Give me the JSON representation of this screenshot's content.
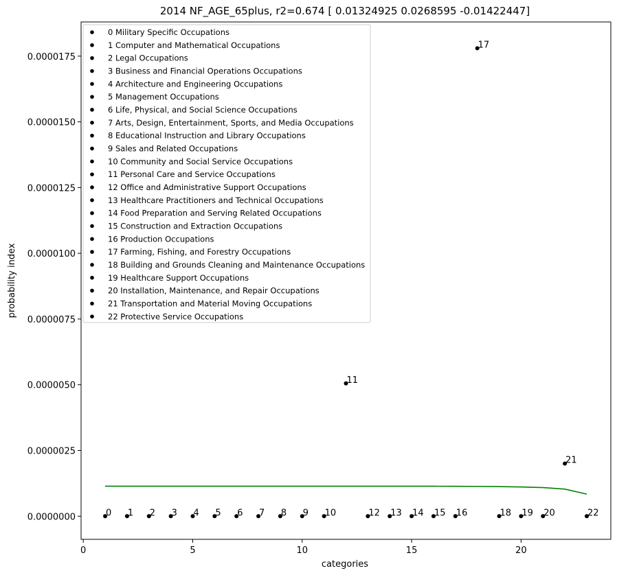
{
  "chart_data": {
    "type": "scatter",
    "title": "2014 NF_AGE_65plus, r2=0.674  [ 0.01324925  0.0268595  -0.01422447]",
    "xlabel": "categories",
    "ylabel": "probability index",
    "xlim": [
      -0.1,
      24.1
    ],
    "ylim": [
      -8.8e-07,
      1.88e-05
    ],
    "x_ticks": [
      0,
      5,
      10,
      15,
      20
    ],
    "x_tick_labels": [
      "0",
      "5",
      "10",
      "15",
      "20"
    ],
    "y_ticks": [
      0,
      2.5e-06,
      5e-06,
      7.5e-06,
      1e-05,
      1.25e-05,
      1.5e-05,
      1.75e-05
    ],
    "y_tick_labels": [
      "0.0000000",
      "0.0000025",
      "0.0000050",
      "0.0000075",
      "0.0000100",
      "0.0000125",
      "0.0000150",
      "0.0000175"
    ],
    "legend_position": "top-left",
    "point_color": "#000000",
    "fit_color": "#008000",
    "points": [
      {
        "label": "0",
        "x": 1,
        "y": 0
      },
      {
        "label": "1",
        "x": 2,
        "y": 0
      },
      {
        "label": "2",
        "x": 3,
        "y": 0
      },
      {
        "label": "3",
        "x": 4,
        "y": 0
      },
      {
        "label": "4",
        "x": 5,
        "y": 0
      },
      {
        "label": "5",
        "x": 6,
        "y": 0
      },
      {
        "label": "6",
        "x": 7,
        "y": 0
      },
      {
        "label": "7",
        "x": 8,
        "y": 0
      },
      {
        "label": "8",
        "x": 9,
        "y": 0
      },
      {
        "label": "9",
        "x": 10,
        "y": 0
      },
      {
        "label": "10",
        "x": 11,
        "y": 0
      },
      {
        "label": "11",
        "x": 12,
        "y": 5.05e-06
      },
      {
        "label": "12",
        "x": 13,
        "y": 0
      },
      {
        "label": "13",
        "x": 14,
        "y": 0
      },
      {
        "label": "14",
        "x": 15,
        "y": 0
      },
      {
        "label": "15",
        "x": 16,
        "y": 0
      },
      {
        "label": "16",
        "x": 17,
        "y": 0
      },
      {
        "label": "17",
        "x": 18,
        "y": 1.78e-05
      },
      {
        "label": "18",
        "x": 19,
        "y": 0
      },
      {
        "label": "19",
        "x": 20,
        "y": 0
      },
      {
        "label": "20",
        "x": 21,
        "y": 0
      },
      {
        "label": "21",
        "x": 22,
        "y": 2e-06
      },
      {
        "label": "22",
        "x": 23,
        "y": 0
      }
    ],
    "fit_line": {
      "x": [
        1,
        2,
        3,
        4,
        5,
        6,
        7,
        8,
        9,
        10,
        11,
        12,
        13,
        14,
        15,
        16,
        17,
        18,
        19,
        20,
        21,
        22,
        23
      ],
      "y": [
        1.14e-06,
        1.14e-06,
        1.14e-06,
        1.14e-06,
        1.14e-06,
        1.14e-06,
        1.14e-06,
        1.14e-06,
        1.14e-06,
        1.14e-06,
        1.14e-06,
        1.14e-06,
        1.14e-06,
        1.14e-06,
        1.14e-06,
        1.14e-06,
        1.138e-06,
        1.133e-06,
        1.125e-06,
        1.112e-06,
        1.09e-06,
        1.03e-06,
        8.4e-07
      ]
    },
    "legend": [
      "0 Military Specific Occupations",
      "1 Computer and Mathematical Occupations",
      "2 Legal Occupations",
      "3 Business and Financial Operations Occupations",
      "4 Architecture and Engineering Occupations",
      "5 Management Occupations",
      "6 Life, Physical, and Social Science Occupations",
      "7 Arts, Design, Entertainment, Sports, and Media Occupations",
      "8 Educational Instruction and Library Occupations",
      "9 Sales and Related Occupations",
      "10 Community and Social Service Occupations",
      "11 Personal Care and Service Occupations",
      "12 Office and Administrative Support Occupations",
      "13 Healthcare Practitioners and Technical Occupations",
      "14 Food Preparation and Serving Related Occupations",
      "15 Construction and Extraction Occupations",
      "16 Production Occupations",
      "17 Farming, Fishing, and Forestry Occupations",
      "18 Building and Grounds Cleaning and Maintenance Occupations",
      "19 Healthcare Support Occupations",
      "20 Installation, Maintenance, and Repair Occupations",
      "21 Transportation and Material Moving Occupations",
      "22 Protective Service Occupations"
    ]
  }
}
